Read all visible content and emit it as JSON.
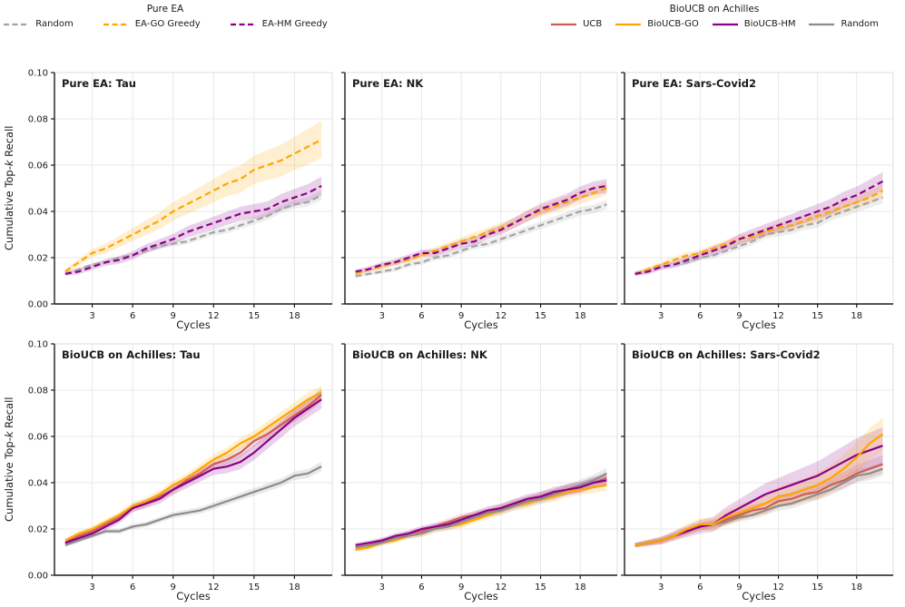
{
  "figure": {
    "ylabel": "Cumulative Top-k Recall",
    "ylabel_parts": {
      "pre": "Cumulative Top-",
      "k": "k",
      "post": " Recall"
    },
    "xlabel": "Cycles",
    "colors": {
      "orange": "#FFA500",
      "purple": "#8B008B",
      "salmon": "#CD5C5C",
      "gray_dashed": "#A3A3A3",
      "gray_solid": "#8C8C8C"
    },
    "legends": [
      {
        "title": "Pure EA",
        "entries": [
          {
            "label": "Random",
            "color": "#A3A3A3",
            "dash": true
          },
          {
            "label": "EA-GO Greedy",
            "color": "#FFA500",
            "dash": true
          },
          {
            "label": "EA-HM Greedy",
            "color": "#8B008B",
            "dash": true
          }
        ]
      },
      {
        "title": "BioUCB on Achilles",
        "entries": [
          {
            "label": "UCB",
            "color": "#CD5C5C",
            "dash": false
          },
          {
            "label": "BioUCB-GO",
            "color": "#FFA500",
            "dash": false
          },
          {
            "label": "BioUCB-HM",
            "color": "#8B008B",
            "dash": false
          },
          {
            "label": "Random",
            "color": "#8C8C8C",
            "dash": false
          }
        ]
      }
    ]
  },
  "chart_data": [
    {
      "type": "line",
      "title": "Pure EA: Tau",
      "xlabel": "Cycles",
      "ylabel": "Cumulative Top-k Recall",
      "xlim": [
        0.2,
        20.8
      ],
      "ylim": [
        0,
        0.1
      ],
      "xticks": [
        3,
        6,
        9,
        12,
        15,
        18
      ],
      "yticks": [
        0.0,
        0.02,
        0.04,
        0.06,
        0.08,
        0.1
      ],
      "grid": true,
      "x": [
        1,
        2,
        3,
        4,
        5,
        6,
        7,
        8,
        9,
        10,
        11,
        12,
        13,
        14,
        15,
        16,
        17,
        18,
        19,
        20
      ],
      "series": [
        {
          "name": "Random",
          "color": "#A3A3A3",
          "dash": true,
          "band": [
            0.0005,
            0.002
          ],
          "values": [
            0.013,
            0.015,
            0.017,
            0.018,
            0.02,
            0.021,
            0.023,
            0.025,
            0.026,
            0.027,
            0.029,
            0.031,
            0.032,
            0.034,
            0.036,
            0.038,
            0.041,
            0.043,
            0.044,
            0.047
          ]
        },
        {
          "name": "EA-GO Greedy",
          "color": "#FFA500",
          "dash": true,
          "band": [
            0.001,
            0.008
          ],
          "values": [
            0.014,
            0.018,
            0.022,
            0.024,
            0.027,
            0.03,
            0.033,
            0.036,
            0.04,
            0.043,
            0.046,
            0.049,
            0.052,
            0.054,
            0.058,
            0.06,
            0.062,
            0.065,
            0.068,
            0.071
          ]
        },
        {
          "name": "EA-HM Greedy",
          "color": "#8B008B",
          "dash": true,
          "band": [
            0.001,
            0.004
          ],
          "values": [
            0.013,
            0.014,
            0.016,
            0.018,
            0.019,
            0.021,
            0.024,
            0.026,
            0.028,
            0.031,
            0.033,
            0.035,
            0.037,
            0.039,
            0.04,
            0.041,
            0.044,
            0.046,
            0.048,
            0.051
          ]
        }
      ]
    },
    {
      "type": "line",
      "title": "Pure EA: NK",
      "xlabel": "Cycles",
      "ylabel": "Cumulative Top-k Recall",
      "xlim": [
        0.2,
        20.8
      ],
      "ylim": [
        0,
        0.1
      ],
      "xticks": [
        3,
        6,
        9,
        12,
        15,
        18
      ],
      "yticks": [
        0.0,
        0.02,
        0.04,
        0.06,
        0.08,
        0.1
      ],
      "grid": true,
      "x": [
        1,
        2,
        3,
        4,
        5,
        6,
        7,
        8,
        9,
        10,
        11,
        12,
        13,
        14,
        15,
        16,
        17,
        18,
        19,
        20
      ],
      "series": [
        {
          "name": "Random",
          "color": "#A3A3A3",
          "dash": true,
          "band": [
            0.0008,
            0.002
          ],
          "values": [
            0.012,
            0.013,
            0.014,
            0.015,
            0.017,
            0.018,
            0.02,
            0.021,
            0.023,
            0.025,
            0.026,
            0.028,
            0.03,
            0.032,
            0.034,
            0.036,
            0.038,
            0.04,
            0.041,
            0.043
          ]
        },
        {
          "name": "EA-GO Greedy",
          "color": "#FFA500",
          "dash": true,
          "band": [
            0.001,
            0.003
          ],
          "values": [
            0.013,
            0.015,
            0.016,
            0.018,
            0.019,
            0.021,
            0.023,
            0.025,
            0.027,
            0.029,
            0.031,
            0.033,
            0.035,
            0.038,
            0.04,
            0.042,
            0.044,
            0.046,
            0.048,
            0.05
          ]
        },
        {
          "name": "EA-HM Greedy",
          "color": "#8B008B",
          "dash": true,
          "band": [
            0.001,
            0.003
          ],
          "values": [
            0.014,
            0.015,
            0.017,
            0.018,
            0.02,
            0.022,
            0.022,
            0.024,
            0.026,
            0.027,
            0.03,
            0.032,
            0.035,
            0.038,
            0.041,
            0.043,
            0.045,
            0.048,
            0.05,
            0.051
          ]
        }
      ]
    },
    {
      "type": "line",
      "title": "Pure EA: Sars-Covid2",
      "xlabel": "Cycles",
      "ylabel": "Cumulative Top-k Recall",
      "xlim": [
        0.2,
        20.8
      ],
      "ylim": [
        0,
        0.1
      ],
      "xticks": [
        3,
        6,
        9,
        12,
        15,
        18
      ],
      "yticks": [
        0.0,
        0.02,
        0.04,
        0.06,
        0.08,
        0.1
      ],
      "grid": true,
      "x": [
        1,
        2,
        3,
        4,
        5,
        6,
        7,
        8,
        9,
        10,
        11,
        12,
        13,
        14,
        15,
        16,
        17,
        18,
        19,
        20
      ],
      "series": [
        {
          "name": "Random",
          "color": "#A3A3A3",
          "dash": true,
          "band": [
            0.0008,
            0.0025
          ],
          "values": [
            0.013,
            0.014,
            0.016,
            0.017,
            0.018,
            0.02,
            0.021,
            0.023,
            0.025,
            0.027,
            0.03,
            0.031,
            0.032,
            0.034,
            0.035,
            0.038,
            0.04,
            0.042,
            0.044,
            0.046
          ]
        },
        {
          "name": "EA-GO Greedy",
          "color": "#FFA500",
          "dash": true,
          "band": [
            0.001,
            0.003
          ],
          "values": [
            0.013,
            0.015,
            0.017,
            0.019,
            0.021,
            0.022,
            0.024,
            0.026,
            0.028,
            0.029,
            0.031,
            0.033,
            0.034,
            0.036,
            0.038,
            0.04,
            0.042,
            0.044,
            0.046,
            0.049
          ]
        },
        {
          "name": "EA-HM Greedy",
          "color": "#8B008B",
          "dash": true,
          "band": [
            0.001,
            0.004
          ],
          "values": [
            0.013,
            0.014,
            0.016,
            0.017,
            0.019,
            0.021,
            0.023,
            0.025,
            0.028,
            0.03,
            0.032,
            0.034,
            0.036,
            0.038,
            0.04,
            0.042,
            0.045,
            0.047,
            0.05,
            0.053
          ]
        }
      ]
    },
    {
      "type": "line",
      "title": "BioUCB on Achilles: Tau",
      "xlabel": "Cycles",
      "ylabel": "Cumulative Top-k Recall",
      "xlim": [
        0.2,
        20.8
      ],
      "ylim": [
        0,
        0.1
      ],
      "xticks": [
        3,
        6,
        9,
        12,
        15,
        18
      ],
      "yticks": [
        0.0,
        0.02,
        0.04,
        0.06,
        0.08,
        0.1
      ],
      "grid": true,
      "x": [
        1,
        2,
        3,
        4,
        5,
        6,
        7,
        8,
        9,
        10,
        11,
        12,
        13,
        14,
        15,
        16,
        17,
        18,
        19,
        20
      ],
      "series": [
        {
          "name": "Random",
          "color": "#8C8C8C",
          "dash": false,
          "band": [
            0.0008,
            0.002
          ],
          "values": [
            0.013,
            0.015,
            0.017,
            0.019,
            0.019,
            0.021,
            0.022,
            0.024,
            0.026,
            0.027,
            0.028,
            0.03,
            0.032,
            0.034,
            0.036,
            0.038,
            0.04,
            0.043,
            0.044,
            0.047
          ]
        },
        {
          "name": "UCB",
          "color": "#CD5C5C",
          "dash": false,
          "band": [
            0.001,
            0.003
          ],
          "values": [
            0.014,
            0.017,
            0.019,
            0.022,
            0.025,
            0.029,
            0.031,
            0.034,
            0.037,
            0.041,
            0.044,
            0.048,
            0.05,
            0.053,
            0.058,
            0.061,
            0.065,
            0.069,
            0.073,
            0.078
          ]
        },
        {
          "name": "BioUCB-HM",
          "color": "#8B008B",
          "dash": false,
          "band": [
            0.001,
            0.004
          ],
          "values": [
            0.014,
            0.016,
            0.018,
            0.021,
            0.024,
            0.029,
            0.031,
            0.033,
            0.037,
            0.04,
            0.043,
            0.046,
            0.047,
            0.049,
            0.053,
            0.058,
            0.063,
            0.068,
            0.072,
            0.076
          ]
        },
        {
          "name": "BioUCB-GO",
          "color": "#FFA500",
          "dash": false,
          "band": [
            0.001,
            0.003
          ],
          "values": [
            0.015,
            0.018,
            0.02,
            0.023,
            0.026,
            0.03,
            0.032,
            0.035,
            0.039,
            0.042,
            0.046,
            0.05,
            0.053,
            0.057,
            0.06,
            0.064,
            0.068,
            0.072,
            0.076,
            0.079
          ]
        }
      ]
    },
    {
      "type": "line",
      "title": "BioUCB on Achilles: NK",
      "xlabel": "Cycles",
      "ylabel": "Cumulative Top-k Recall",
      "xlim": [
        0.2,
        20.8
      ],
      "ylim": [
        0,
        0.1
      ],
      "xticks": [
        3,
        6,
        9,
        12,
        15,
        18
      ],
      "yticks": [
        0.0,
        0.02,
        0.04,
        0.06,
        0.08,
        0.1
      ],
      "grid": true,
      "x": [
        1,
        2,
        3,
        4,
        5,
        6,
        7,
        8,
        9,
        10,
        11,
        12,
        13,
        14,
        15,
        16,
        17,
        18,
        19,
        20
      ],
      "series": [
        {
          "name": "UCB",
          "color": "#CD5C5C",
          "dash": false,
          "band": [
            0.001,
            0.0025
          ],
          "values": [
            0.012,
            0.013,
            0.015,
            0.016,
            0.018,
            0.019,
            0.021,
            0.023,
            0.025,
            0.026,
            0.027,
            0.029,
            0.031,
            0.032,
            0.034,
            0.035,
            0.037,
            0.038,
            0.04,
            0.042
          ]
        },
        {
          "name": "BioUCB-GO",
          "color": "#FFA500",
          "dash": false,
          "band": [
            0.001,
            0.0025
          ],
          "values": [
            0.011,
            0.012,
            0.014,
            0.015,
            0.017,
            0.018,
            0.02,
            0.021,
            0.022,
            0.024,
            0.026,
            0.028,
            0.03,
            0.031,
            0.033,
            0.034,
            0.036,
            0.037,
            0.038,
            0.039
          ]
        },
        {
          "name": "Random",
          "color": "#8C8C8C",
          "dash": false,
          "band": [
            0.001,
            0.0025
          ],
          "values": [
            0.012,
            0.013,
            0.014,
            0.016,
            0.017,
            0.018,
            0.02,
            0.021,
            0.023,
            0.025,
            0.027,
            0.028,
            0.03,
            0.032,
            0.033,
            0.035,
            0.037,
            0.039,
            0.041,
            0.044
          ]
        },
        {
          "name": "BioUCB-HM",
          "color": "#8B008B",
          "dash": false,
          "band": [
            0.001,
            0.0025
          ],
          "values": [
            0.013,
            0.014,
            0.015,
            0.017,
            0.018,
            0.02,
            0.021,
            0.022,
            0.024,
            0.026,
            0.028,
            0.029,
            0.031,
            0.033,
            0.034,
            0.036,
            0.037,
            0.038,
            0.04,
            0.041
          ]
        }
      ]
    },
    {
      "type": "line",
      "title": "BioUCB on Achilles: Sars-Covid2",
      "xlabel": "Cycles",
      "ylabel": "Cumulative Top-k Recall",
      "xlim": [
        0.2,
        20.8
      ],
      "ylim": [
        0,
        0.1
      ],
      "xticks": [
        3,
        6,
        9,
        12,
        15,
        18
      ],
      "yticks": [
        0.0,
        0.02,
        0.04,
        0.06,
        0.08,
        0.1
      ],
      "grid": true,
      "x": [
        1,
        2,
        3,
        4,
        5,
        6,
        7,
        8,
        9,
        10,
        11,
        12,
        13,
        14,
        15,
        16,
        17,
        18,
        19,
        20
      ],
      "series": [
        {
          "name": "Random",
          "color": "#8C8C8C",
          "dash": false,
          "band": [
            0.0008,
            0.003
          ],
          "values": [
            0.013,
            0.014,
            0.015,
            0.017,
            0.019,
            0.021,
            0.022,
            0.023,
            0.025,
            0.026,
            0.028,
            0.03,
            0.031,
            0.033,
            0.035,
            0.037,
            0.04,
            0.043,
            0.044,
            0.046
          ]
        },
        {
          "name": "UCB",
          "color": "#CD5C5C",
          "dash": false,
          "band": [
            0.001,
            0.004
          ],
          "values": [
            0.013,
            0.014,
            0.015,
            0.017,
            0.019,
            0.021,
            0.022,
            0.024,
            0.026,
            0.028,
            0.029,
            0.032,
            0.033,
            0.035,
            0.036,
            0.039,
            0.041,
            0.044,
            0.046,
            0.048
          ]
        },
        {
          "name": "BioUCB-HM",
          "color": "#8B008B",
          "dash": false,
          "band": [
            0.001,
            0.008
          ],
          "values": [
            0.013,
            0.014,
            0.015,
            0.017,
            0.019,
            0.021,
            0.022,
            0.026,
            0.029,
            0.032,
            0.035,
            0.037,
            0.039,
            0.041,
            0.043,
            0.046,
            0.049,
            0.052,
            0.054,
            0.056
          ]
        },
        {
          "name": "BioUCB-GO",
          "color": "#FFA500",
          "dash": false,
          "band": [
            0.001,
            0.007
          ],
          "values": [
            0.013,
            0.014,
            0.015,
            0.017,
            0.02,
            0.022,
            0.022,
            0.025,
            0.027,
            0.029,
            0.031,
            0.034,
            0.035,
            0.037,
            0.039,
            0.042,
            0.046,
            0.051,
            0.057,
            0.061
          ]
        }
      ]
    }
  ]
}
